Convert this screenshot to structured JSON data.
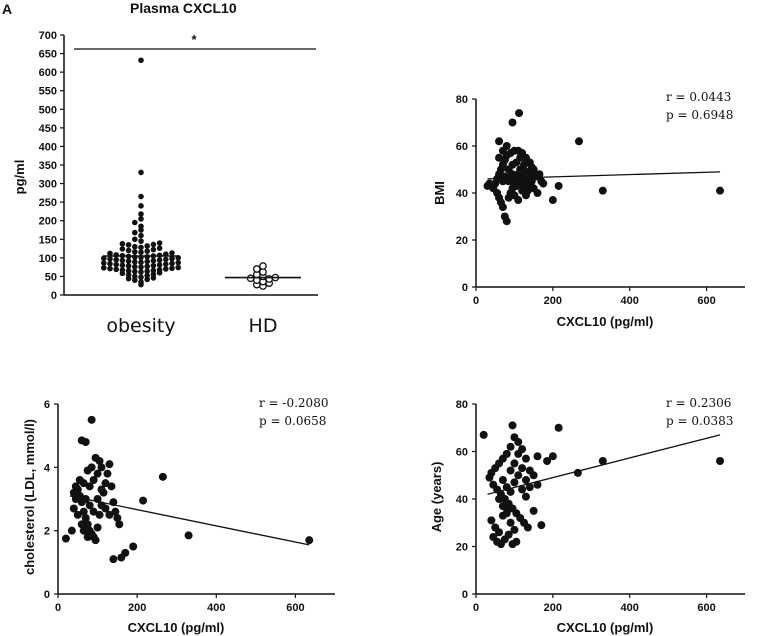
{
  "panel_letter": "A",
  "chart_data": [
    {
      "id": "panelA",
      "type": "scatter",
      "title": "Plasma CXCL10",
      "xlabel": "",
      "ylabel": "pg/ml",
      "categories": [
        "obesity",
        "HD"
      ],
      "ylim": [
        0,
        700
      ],
      "yticks": [
        0,
        50,
        100,
        150,
        200,
        250,
        300,
        350,
        400,
        450,
        500,
        550,
        600,
        650,
        700
      ],
      "significance": "*",
      "medians": [
        105,
        47
      ],
      "series": [
        {
          "name": "obesity",
          "marker": "filled",
          "values": [
            632,
            330,
            265,
            240,
            218,
            205,
            195,
            185,
            175,
            168,
            160,
            150,
            145,
            140,
            138,
            136,
            135,
            132,
            130,
            128,
            126,
            124,
            122,
            120,
            118,
            116,
            115,
            113,
            112,
            110,
            108,
            107,
            106,
            105,
            104,
            103,
            102,
            101,
            100,
            99,
            98,
            97,
            96,
            95,
            94,
            93,
            92,
            91,
            90,
            89,
            88,
            87,
            86,
            85,
            84,
            83,
            82,
            81,
            80,
            79,
            78,
            77,
            76,
            75,
            74,
            73,
            72,
            71,
            70,
            69,
            68,
            67,
            66,
            65,
            64,
            63,
            62,
            60,
            58,
            56,
            54,
            52,
            50,
            48,
            46,
            44,
            42,
            40,
            35,
            28
          ]
        },
        {
          "name": "HD",
          "marker": "open",
          "values": [
            78,
            70,
            62,
            55,
            50,
            47,
            45,
            43,
            40,
            36,
            32,
            28,
            24
          ]
        }
      ]
    },
    {
      "id": "panelB",
      "type": "scatter",
      "xlabel": "CXCL10 (pg/ml)",
      "ylabel": "BMI",
      "xlim": [
        0,
        700
      ],
      "ylim": [
        0,
        80
      ],
      "xticks": [
        0,
        200,
        400,
        600
      ],
      "yticks": [
        0,
        20,
        40,
        60,
        80
      ],
      "r": "r = 0.0443",
      "p": "p = 0.6948",
      "regression": {
        "x": [
          30,
          635
        ],
        "y": [
          46,
          49
        ]
      },
      "points": [
        [
          60,
          62
        ],
        [
          112,
          74
        ],
        [
          95,
          70
        ],
        [
          268,
          62
        ],
        [
          330,
          41
        ],
        [
          635,
          41
        ],
        [
          200,
          37
        ],
        [
          215,
          43
        ],
        [
          170,
          45
        ],
        [
          150,
          50
        ],
        [
          140,
          53
        ],
        [
          130,
          55
        ],
        [
          120,
          57
        ],
        [
          110,
          58
        ],
        [
          100,
          58
        ],
        [
          90,
          57
        ],
        [
          80,
          56
        ],
        [
          75,
          54
        ],
        [
          70,
          52
        ],
        [
          65,
          50
        ],
        [
          60,
          48
        ],
        [
          55,
          46
        ],
        [
          50,
          44
        ],
        [
          45,
          42
        ],
        [
          40,
          43
        ],
        [
          35,
          44
        ],
        [
          30,
          43
        ],
        [
          55,
          40
        ],
        [
          60,
          38
        ],
        [
          65,
          36
        ],
        [
          70,
          34
        ],
        [
          75,
          30
        ],
        [
          80,
          28
        ],
        [
          85,
          38
        ],
        [
          90,
          40
        ],
        [
          95,
          42
        ],
        [
          100,
          44
        ],
        [
          105,
          46
        ],
        [
          110,
          48
        ],
        [
          115,
          50
        ],
        [
          120,
          47
        ],
        [
          125,
          45
        ],
        [
          130,
          43
        ],
        [
          135,
          41
        ],
        [
          140,
          44
        ],
        [
          145,
          47
        ],
        [
          150,
          42
        ],
        [
          160,
          40
        ],
        [
          165,
          48
        ],
        [
          175,
          44
        ],
        [
          85,
          50
        ],
        [
          95,
          52
        ],
        [
          105,
          53
        ],
        [
          115,
          55
        ],
        [
          125,
          52
        ],
        [
          135,
          49
        ],
        [
          145,
          51
        ],
        [
          60,
          55
        ],
        [
          70,
          58
        ],
        [
          80,
          60
        ],
        [
          90,
          47
        ],
        [
          100,
          39
        ],
        [
          110,
          37
        ],
        [
          120,
          41
        ],
        [
          130,
          39
        ],
        [
          70,
          45
        ],
        [
          75,
          47
        ],
        [
          85,
          45
        ],
        [
          95,
          48
        ],
        [
          105,
          43
        ],
        [
          115,
          44
        ],
        [
          125,
          49
        ],
        [
          135,
          46
        ],
        [
          145,
          45
        ],
        [
          155,
          47
        ]
      ]
    },
    {
      "id": "panelC",
      "type": "scatter",
      "xlabel": "CXCL10 (pg/ml)",
      "ylabel": "cholesterol (LDL, mmol/l)",
      "xlim": [
        0,
        700
      ],
      "ylim": [
        0,
        6
      ],
      "xticks": [
        0,
        200,
        400,
        600
      ],
      "yticks": [
        0,
        2,
        4,
        6
      ],
      "r": "r = -0.2080",
      "p": "p = 0.0658",
      "regression": {
        "x": [
          30,
          635
        ],
        "y": [
          3.1,
          1.55
        ]
      },
      "points": [
        [
          85,
          5.5
        ],
        [
          60,
          4.85
        ],
        [
          70,
          4.8
        ],
        [
          265,
          3.7
        ],
        [
          215,
          2.95
        ],
        [
          330,
          1.85
        ],
        [
          635,
          1.7
        ],
        [
          190,
          1.5
        ],
        [
          170,
          1.3
        ],
        [
          160,
          1.15
        ],
        [
          140,
          1.1
        ],
        [
          20,
          1.75
        ],
        [
          35,
          2.0
        ],
        [
          40,
          2.7
        ],
        [
          45,
          3.0
        ],
        [
          50,
          3.3
        ],
        [
          55,
          3.1
        ],
        [
          60,
          2.9
        ],
        [
          65,
          2.6
        ],
        [
          70,
          2.4
        ],
        [
          75,
          2.2
        ],
        [
          80,
          2.0
        ],
        [
          85,
          1.9
        ],
        [
          90,
          1.8
        ],
        [
          95,
          1.7
        ],
        [
          100,
          2.1
        ],
        [
          105,
          2.5
        ],
        [
          110,
          2.8
        ],
        [
          115,
          3.2
        ],
        [
          120,
          3.5
        ],
        [
          125,
          3.8
        ],
        [
          130,
          4.1
        ],
        [
          135,
          3.4
        ],
        [
          140,
          2.9
        ],
        [
          145,
          2.6
        ],
        [
          150,
          2.4
        ],
        [
          155,
          2.2
        ],
        [
          80,
          3.4
        ],
        [
          90,
          3.6
        ],
        [
          100,
          3.8
        ],
        [
          110,
          4.0
        ],
        [
          95,
          4.3
        ],
        [
          85,
          4.0
        ],
        [
          75,
          3.9
        ],
        [
          65,
          3.5
        ],
        [
          55,
          3.6
        ],
        [
          45,
          3.4
        ],
        [
          40,
          3.2
        ],
        [
          50,
          2.5
        ],
        [
          60,
          2.2
        ],
        [
          70,
          3.0
        ],
        [
          80,
          2.8
        ],
        [
          90,
          2.6
        ],
        [
          100,
          3.0
        ],
        [
          110,
          3.3
        ],
        [
          120,
          2.7
        ],
        [
          130,
          2.5
        ],
        [
          65,
          2.0
        ],
        [
          75,
          1.8
        ],
        [
          105,
          4.2
        ]
      ]
    },
    {
      "id": "panelD",
      "type": "scatter",
      "xlabel": "CXCL10 (pg/ml)",
      "ylabel": "Age (years)",
      "xlim": [
        0,
        700
      ],
      "ylim": [
        0,
        80
      ],
      "xticks": [
        0,
        200,
        400,
        600
      ],
      "yticks": [
        0,
        20,
        40,
        60,
        80
      ],
      "r": "r = 0.2306",
      "p": "p = 0.0383",
      "regression": {
        "x": [
          30,
          635
        ],
        "y": [
          42,
          67
        ]
      },
      "points": [
        [
          95,
          71
        ],
        [
          215,
          70
        ],
        [
          20,
          67
        ],
        [
          635,
          56
        ],
        [
          330,
          56
        ],
        [
          265,
          51
        ],
        [
          185,
          56
        ],
        [
          200,
          58
        ],
        [
          170,
          29
        ],
        [
          150,
          35
        ],
        [
          160,
          46
        ],
        [
          140,
          52
        ],
        [
          130,
          57
        ],
        [
          120,
          61
        ],
        [
          110,
          64
        ],
        [
          100,
          66
        ],
        [
          90,
          62
        ],
        [
          80,
          59
        ],
        [
          70,
          57
        ],
        [
          60,
          55
        ],
        [
          50,
          53
        ],
        [
          40,
          51
        ],
        [
          35,
          49
        ],
        [
          45,
          46
        ],
        [
          55,
          44
        ],
        [
          65,
          42
        ],
        [
          75,
          40
        ],
        [
          85,
          38
        ],
        [
          95,
          36
        ],
        [
          105,
          34
        ],
        [
          115,
          32
        ],
        [
          125,
          30
        ],
        [
          135,
          28
        ],
        [
          45,
          24
        ],
        [
          55,
          22
        ],
        [
          65,
          21
        ],
        [
          75,
          23
        ],
        [
          85,
          25
        ],
        [
          95,
          21
        ],
        [
          105,
          22
        ],
        [
          40,
          31
        ],
        [
          50,
          28
        ],
        [
          60,
          26
        ],
        [
          70,
          33
        ],
        [
          80,
          36
        ],
        [
          90,
          43
        ],
        [
          100,
          47
        ],
        [
          110,
          50
        ],
        [
          120,
          53
        ],
        [
          130,
          48
        ],
        [
          140,
          45
        ],
        [
          150,
          50
        ],
        [
          160,
          58
        ],
        [
          70,
          48
        ],
        [
          80,
          45
        ],
        [
          90,
          52
        ],
        [
          100,
          55
        ],
        [
          110,
          59
        ],
        [
          120,
          44
        ],
        [
          130,
          41
        ],
        [
          60,
          40
        ],
        [
          70,
          37
        ],
        [
          80,
          34
        ],
        [
          90,
          30
        ],
        [
          100,
          27
        ]
      ]
    }
  ]
}
